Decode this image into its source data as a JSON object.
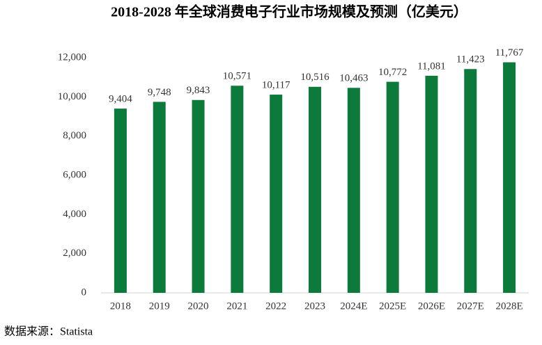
{
  "chart_data": {
    "type": "bar",
    "title": "2018-2028 年全球消费电子行业市场规模及预测（亿美元）",
    "categories": [
      "2018",
      "2019",
      "2020",
      "2021",
      "2022",
      "2023",
      "2024E",
      "2025E",
      "2026E",
      "2027E",
      "2028E"
    ],
    "values": [
      9404,
      9748,
      9843,
      10571,
      10117,
      10516,
      10463,
      10772,
      11081,
      11423,
      11767
    ],
    "value_labels": [
      "9,404",
      "9,748",
      "9,843",
      "10,571",
      "10,117",
      "10,516",
      "10,463",
      "10,772",
      "11,081",
      "11,423",
      "11,767"
    ],
    "color": "#0b7a3b",
    "ylim": [
      0,
      12000
    ],
    "yticks": [
      0,
      {
        "value": 2000,
        "label": "2,000"
      },
      {
        "value": 4000,
        "label": "4,000"
      },
      {
        "value": 6000,
        "label": "6,000"
      },
      {
        "value": 8000,
        "label": "8,000"
      },
      {
        "value": 10000,
        "label": "10,000"
      },
      {
        "value": 12000,
        "label": "12,000"
      }
    ],
    "grid": false,
    "source": "数据来源：Statista"
  }
}
